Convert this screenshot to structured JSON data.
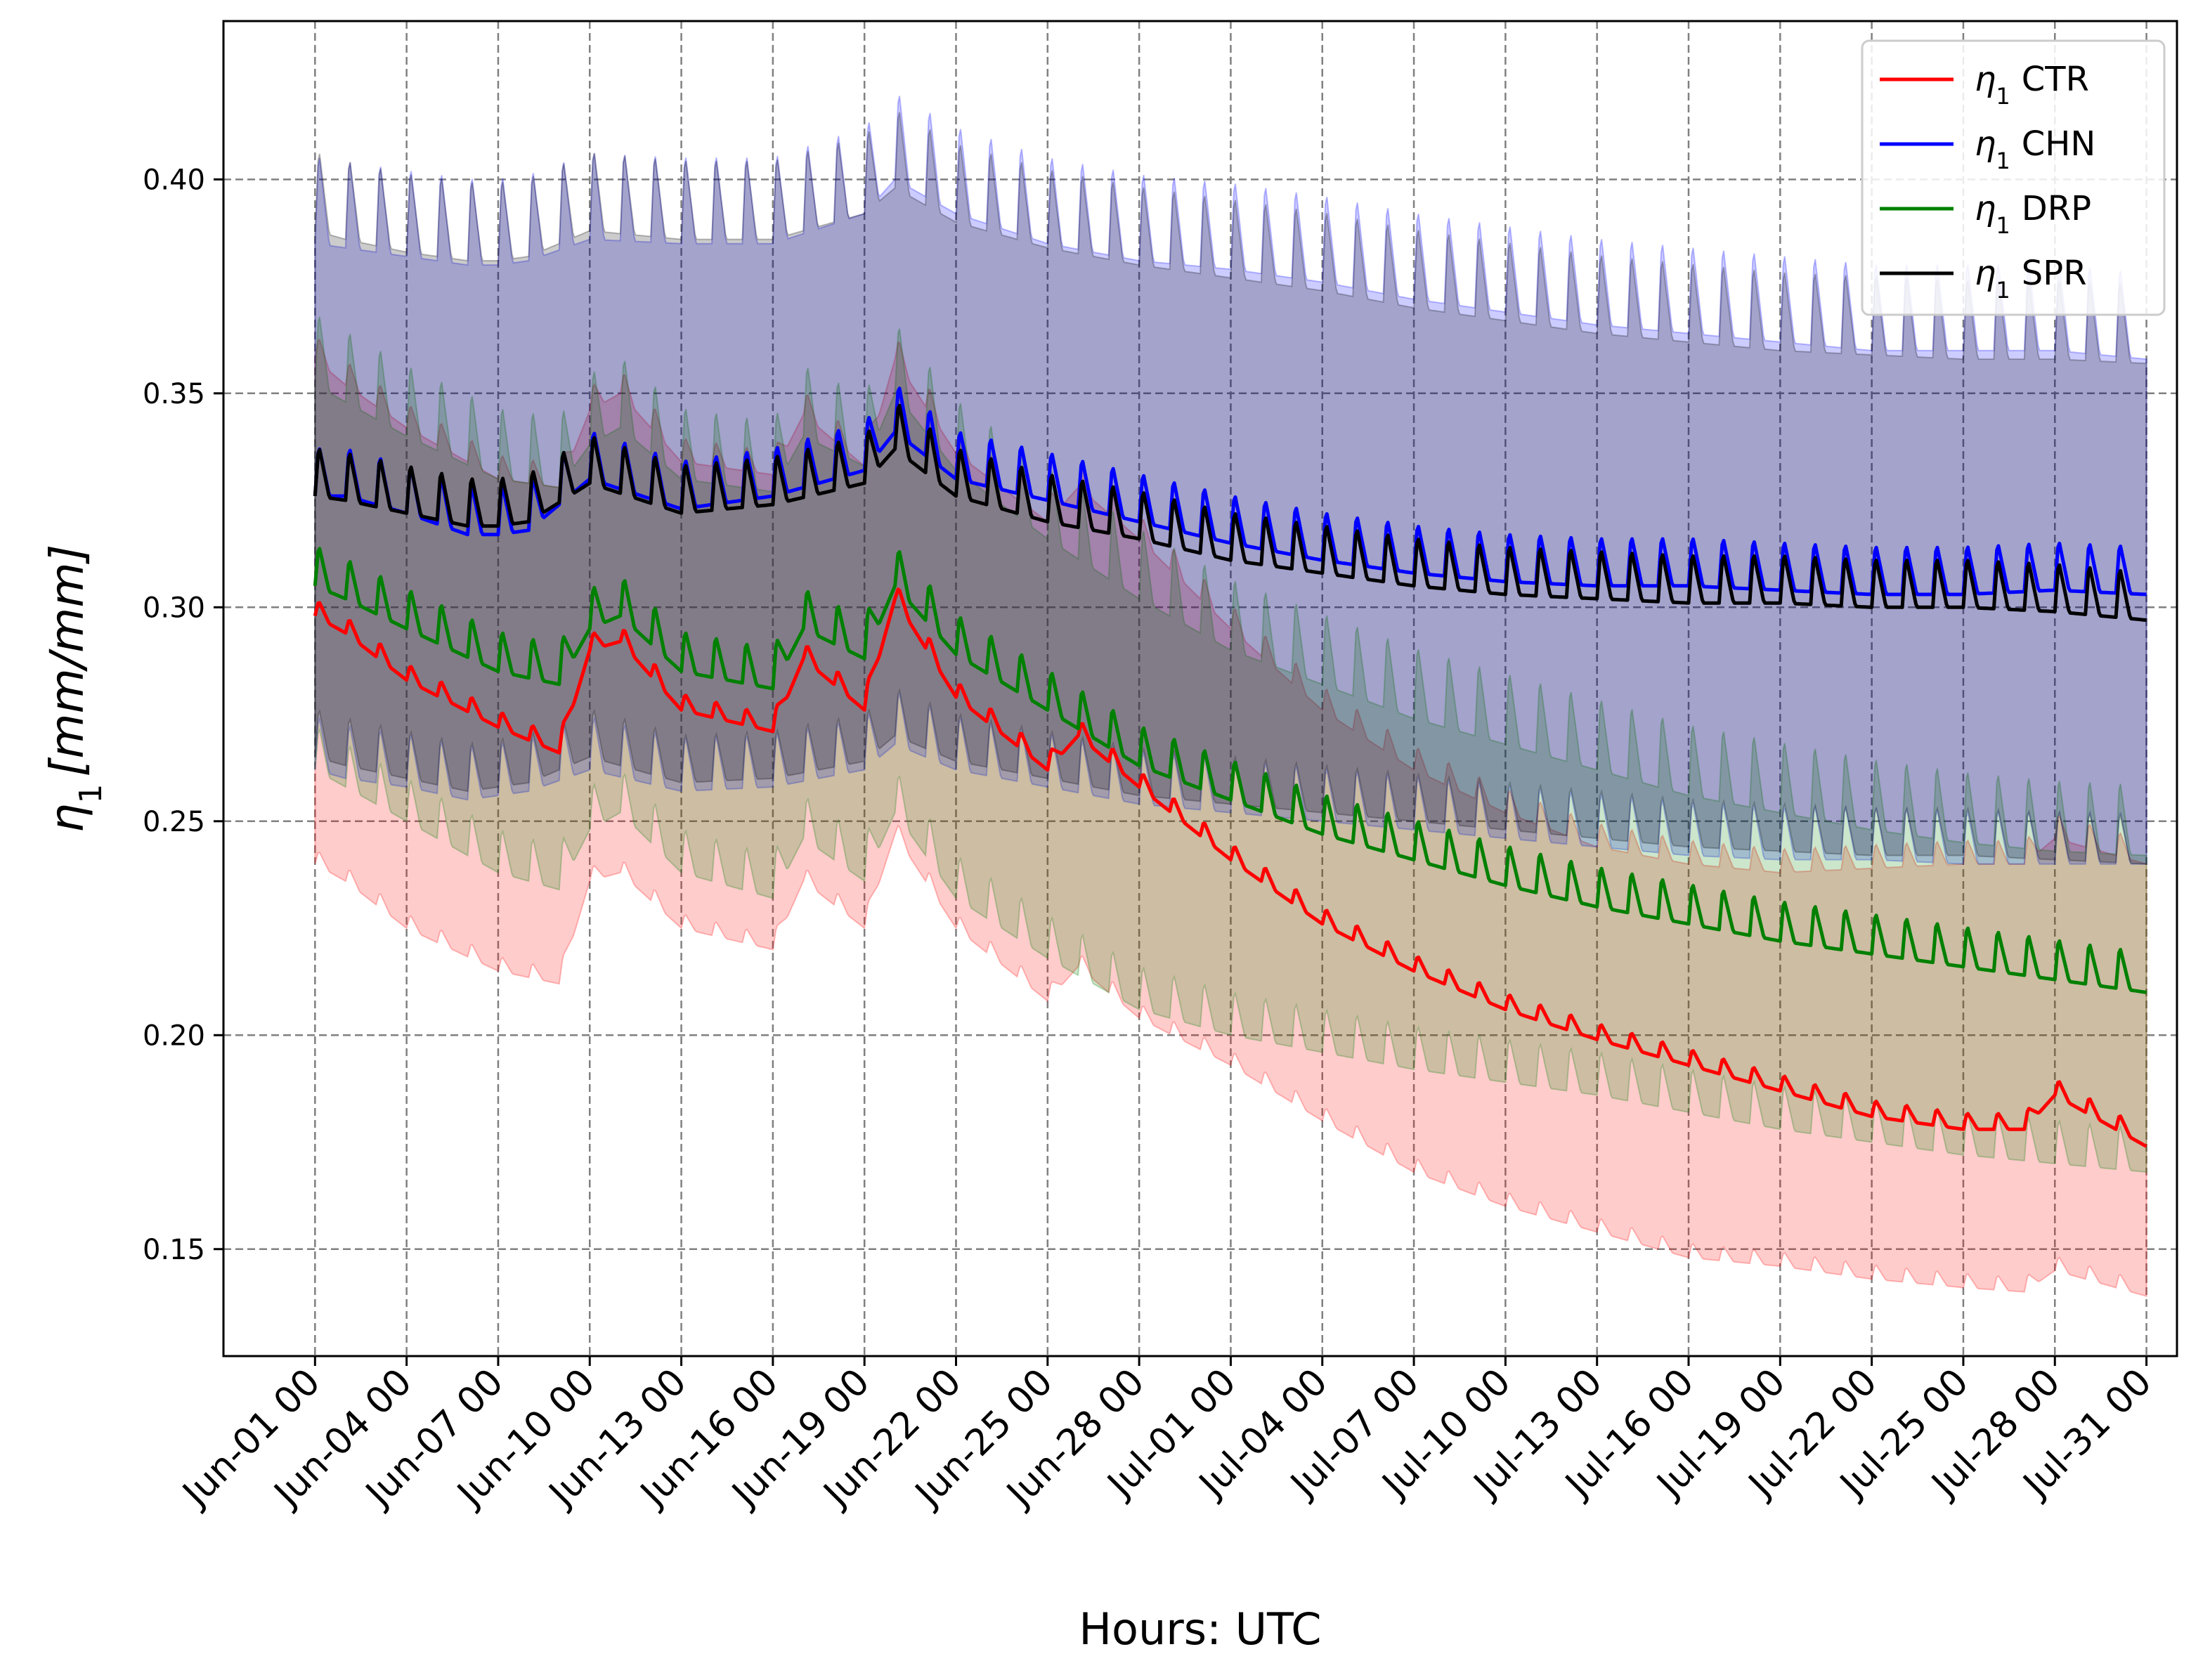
{
  "chart_data": {
    "type": "line",
    "title": "",
    "xlabel": "Hours: UTC",
    "ylabel_symbol": "η",
    "ylabel_subscript": "1",
    "ylabel_units": "[mm/mm]",
    "ylim": [
      0.125,
      0.437
    ],
    "xlim": [
      -3,
      61
    ],
    "y_ticks": [
      0.15,
      0.2,
      0.25,
      0.3,
      0.35,
      0.4
    ],
    "y_tick_labels": [
      "0.15",
      "0.20",
      "0.25",
      "0.30",
      "0.35",
      "0.40"
    ],
    "x_ticks": [
      0,
      3,
      6,
      9,
      12,
      15,
      18,
      21,
      24,
      27,
      30,
      33,
      36,
      39,
      42,
      45,
      48,
      51,
      54,
      57,
      60
    ],
    "x_tick_labels": [
      "Jun-01 00",
      "Jun-04 00",
      "Jun-07 00",
      "Jun-10 00",
      "Jun-13 00",
      "Jun-16 00",
      "Jun-19 00",
      "Jun-22 00",
      "Jun-25 00",
      "Jun-28 00",
      "Jul-01 00",
      "Jul-04 00",
      "Jul-07 00",
      "Jul-10 00",
      "Jul-13 00",
      "Jul-16 00",
      "Jul-19 00",
      "Jul-22 00",
      "Jul-25 00",
      "Jul-28 00",
      "Jul-31 00"
    ],
    "x_unit": "days since Jun-01 00 UTC",
    "grid": true,
    "legend_position": "top-right",
    "series": [
      {
        "name": "CTR",
        "color": "#ff0000",
        "band_color": "#ff0000",
        "x": [
          0,
          1,
          3,
          6,
          8,
          9,
          10,
          12,
          15,
          16,
          18,
          19,
          21,
          24,
          25,
          27,
          30,
          33,
          36,
          39,
          42,
          45,
          48,
          51,
          54,
          56,
          57,
          60
        ],
        "mean": [
          0.298,
          0.294,
          0.283,
          0.272,
          0.266,
          0.29,
          0.292,
          0.276,
          0.271,
          0.288,
          0.276,
          0.302,
          0.279,
          0.262,
          0.27,
          0.258,
          0.241,
          0.226,
          0.215,
          0.206,
          0.199,
          0.193,
          0.187,
          0.181,
          0.178,
          0.178,
          0.186,
          0.174
        ],
        "lower": [
          0.24,
          0.236,
          0.225,
          0.215,
          0.212,
          0.236,
          0.238,
          0.225,
          0.22,
          0.236,
          0.225,
          0.247,
          0.225,
          0.208,
          0.216,
          0.204,
          0.193,
          0.18,
          0.168,
          0.16,
          0.154,
          0.148,
          0.146,
          0.143,
          0.141,
          0.14,
          0.145,
          0.139
        ],
        "upper": [
          0.358,
          0.352,
          0.342,
          0.33,
          0.328,
          0.346,
          0.35,
          0.334,
          0.331,
          0.345,
          0.333,
          0.358,
          0.336,
          0.32,
          0.328,
          0.316,
          0.295,
          0.276,
          0.262,
          0.252,
          0.244,
          0.24,
          0.238,
          0.239,
          0.24,
          0.24,
          0.246,
          0.24
        ]
      },
      {
        "name": "CHN",
        "color": "#0000ff",
        "band_color": "#0000ff",
        "x": [
          0,
          1,
          3,
          5,
          6,
          7,
          9,
          12,
          15,
          18,
          19,
          21,
          24,
          27,
          30,
          33,
          36,
          39,
          42,
          45,
          48,
          51,
          54,
          57,
          60
        ],
        "mean": [
          0.326,
          0.326,
          0.322,
          0.317,
          0.317,
          0.318,
          0.33,
          0.323,
          0.326,
          0.332,
          0.341,
          0.33,
          0.325,
          0.32,
          0.315,
          0.311,
          0.308,
          0.306,
          0.305,
          0.305,
          0.304,
          0.303,
          0.303,
          0.304,
          0.303
        ],
        "lower": [
          0.262,
          0.26,
          0.258,
          0.255,
          0.256,
          0.257,
          0.262,
          0.257,
          0.258,
          0.262,
          0.268,
          0.262,
          0.258,
          0.254,
          0.252,
          0.25,
          0.248,
          0.246,
          0.244,
          0.242,
          0.241,
          0.241,
          0.24,
          0.24,
          0.24
        ],
        "upper": [
          0.385,
          0.384,
          0.382,
          0.38,
          0.38,
          0.381,
          0.386,
          0.385,
          0.385,
          0.392,
          0.4,
          0.392,
          0.385,
          0.381,
          0.379,
          0.376,
          0.372,
          0.369,
          0.366,
          0.364,
          0.362,
          0.36,
          0.36,
          0.36,
          0.358
        ]
      },
      {
        "name": "DRP",
        "color": "#008000",
        "band_color": "#008000",
        "x": [
          0,
          1,
          3,
          6,
          8,
          9,
          10,
          12,
          15,
          16,
          18,
          19,
          21,
          24,
          27,
          30,
          33,
          36,
          39,
          42,
          45,
          48,
          51,
          54,
          57,
          60
        ],
        "mean": [
          0.305,
          0.302,
          0.295,
          0.285,
          0.282,
          0.295,
          0.298,
          0.285,
          0.281,
          0.295,
          0.288,
          0.305,
          0.289,
          0.276,
          0.263,
          0.255,
          0.247,
          0.241,
          0.235,
          0.23,
          0.226,
          0.222,
          0.219,
          0.216,
          0.213,
          0.21
        ],
        "lower": [
          0.262,
          0.258,
          0.25,
          0.238,
          0.234,
          0.248,
          0.252,
          0.238,
          0.232,
          0.246,
          0.236,
          0.252,
          0.232,
          0.218,
          0.206,
          0.2,
          0.196,
          0.192,
          0.189,
          0.186,
          0.182,
          0.178,
          0.175,
          0.172,
          0.17,
          0.168
        ],
        "upper": [
          0.352,
          0.348,
          0.34,
          0.33,
          0.328,
          0.338,
          0.342,
          0.33,
          0.327,
          0.34,
          0.333,
          0.35,
          0.332,
          0.316,
          0.302,
          0.29,
          0.282,
          0.274,
          0.268,
          0.262,
          0.256,
          0.252,
          0.248,
          0.245,
          0.243,
          0.242
        ]
      },
      {
        "name": "SPR",
        "color": "#000000",
        "band_color": "#000000",
        "x": [
          0,
          1,
          3,
          5,
          6,
          7,
          9,
          12,
          15,
          18,
          19,
          21,
          24,
          27,
          30,
          33,
          36,
          39,
          42,
          45,
          48,
          51,
          54,
          57,
          60
        ],
        "mean": [
          0.326,
          0.325,
          0.322,
          0.319,
          0.319,
          0.32,
          0.329,
          0.322,
          0.324,
          0.329,
          0.337,
          0.326,
          0.32,
          0.316,
          0.311,
          0.308,
          0.305,
          0.303,
          0.302,
          0.301,
          0.301,
          0.3,
          0.3,
          0.299,
          0.297
        ],
        "lower": [
          0.265,
          0.263,
          0.26,
          0.257,
          0.258,
          0.259,
          0.265,
          0.259,
          0.26,
          0.264,
          0.27,
          0.264,
          0.26,
          0.256,
          0.254,
          0.252,
          0.25,
          0.248,
          0.246,
          0.244,
          0.243,
          0.242,
          0.242,
          0.241,
          0.24
        ],
        "upper": [
          0.388,
          0.386,
          0.383,
          0.381,
          0.381,
          0.382,
          0.388,
          0.386,
          0.386,
          0.392,
          0.398,
          0.39,
          0.384,
          0.38,
          0.377,
          0.374,
          0.37,
          0.367,
          0.364,
          0.362,
          0.36,
          0.359,
          0.358,
          0.358,
          0.357
        ]
      }
    ]
  }
}
